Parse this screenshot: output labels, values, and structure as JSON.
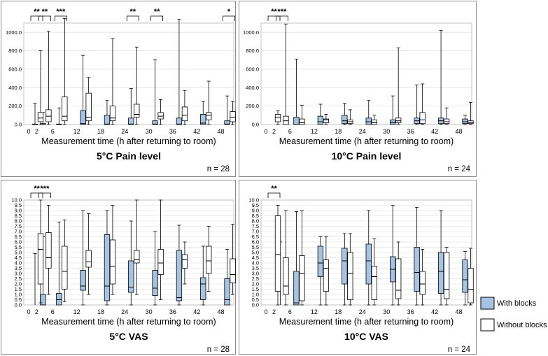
{
  "colors": {
    "with_blocks": "#a6c4e2",
    "without_blocks": "#ffffff",
    "stroke": "#000000"
  },
  "legend": {
    "with_blocks": "With blocks",
    "without_blocks": "Without blocks"
  },
  "chart_data": [
    {
      "type": "boxplot",
      "title": "5°C Pain level",
      "n_label": "n = 28",
      "xlabel": "Measurement time (h after returning to room)",
      "ylabel": "",
      "ylim": [
        0,
        1100
      ],
      "yticks": [
        "0.0",
        "200.0",
        "400.0",
        "600.0",
        "800.0",
        "1000.0"
      ],
      "ytick_values": [
        0,
        200,
        400,
        600,
        800,
        1000
      ],
      "categories": [
        "0",
        "2",
        "6",
        "12",
        "18",
        "24",
        "30",
        "36",
        "42",
        "48"
      ],
      "category_times": [
        0,
        2,
        6,
        12,
        18,
        24,
        30,
        36,
        42,
        48
      ],
      "significance": [
        {
          "time": 0,
          "label": "**"
        },
        {
          "time": 2,
          "label": "**"
        },
        {
          "time": 6,
          "label": "***"
        },
        {
          "time": 24,
          "label": "**"
        },
        {
          "time": 30,
          "label": "**"
        },
        {
          "time": 48,
          "label": "*"
        }
      ],
      "series": [
        {
          "name": "With blocks",
          "boxes": [
            {
              "min": 0,
              "q1": 0,
              "med": 0,
              "q3": 5,
              "max": 230
            },
            {
              "min": 0,
              "q1": 0,
              "med": 0,
              "q3": 10,
              "max": 130
            },
            {
              "min": 0,
              "q1": 0,
              "med": 0,
              "q3": 5,
              "max": 180
            },
            {
              "min": 0,
              "q1": 0,
              "med": 10,
              "q3": 150,
              "max": 750
            },
            {
              "min": 0,
              "q1": 0,
              "med": 5,
              "q3": 100,
              "max": 260
            },
            {
              "min": 0,
              "q1": 0,
              "med": 5,
              "q3": 70,
              "max": 390
            },
            {
              "min": 0,
              "q1": 0,
              "med": 5,
              "q3": 40,
              "max": 700
            },
            {
              "min": 0,
              "q1": 0,
              "med": 5,
              "q3": 70,
              "max": 1140
            },
            {
              "min": 0,
              "q1": 0,
              "med": 15,
              "q3": 110,
              "max": 250
            },
            {
              "min": 0,
              "q1": 0,
              "med": 5,
              "q3": 40,
              "max": 310
            }
          ]
        },
        {
          "name": "Without blocks",
          "boxes": [
            {
              "min": 0,
              "q1": 30,
              "med": 70,
              "q3": 130,
              "max": 800
            },
            {
              "min": 0,
              "q1": 30,
              "med": 90,
              "q3": 160,
              "max": 1010
            },
            {
              "min": 0,
              "q1": 40,
              "med": 90,
              "q3": 300,
              "max": 1150
            },
            {
              "min": 0,
              "q1": 40,
              "med": 80,
              "q3": 340,
              "max": 510
            },
            {
              "min": 0,
              "q1": 40,
              "med": 70,
              "q3": 200,
              "max": 930
            },
            {
              "min": 0,
              "q1": 80,
              "med": 110,
              "q3": 220,
              "max": 840
            },
            {
              "min": 0,
              "q1": 60,
              "med": 90,
              "q3": 130,
              "max": 270
            },
            {
              "min": 0,
              "q1": 40,
              "med": 100,
              "q3": 190,
              "max": 370
            },
            {
              "min": 0,
              "q1": 50,
              "med": 100,
              "q3": 130,
              "max": 470
            },
            {
              "min": 0,
              "q1": 30,
              "med": 80,
              "q3": 140,
              "max": 250
            }
          ]
        }
      ]
    },
    {
      "type": "boxplot",
      "title": "10°C Pain level",
      "n_label": "n = 24",
      "xlabel": "Measurement time (h after returning to room)",
      "ylabel": "",
      "ylim": [
        0,
        1100
      ],
      "yticks": [
        "0.0",
        "200.0",
        "400.0",
        "600.0",
        "800.0",
        "1000.0"
      ],
      "ytick_values": [
        0,
        200,
        400,
        600,
        800,
        1000
      ],
      "categories": [
        "0",
        "2",
        "6",
        "12",
        "18",
        "24",
        "30",
        "36",
        "42",
        "48"
      ],
      "category_times": [
        0,
        2,
        6,
        12,
        18,
        24,
        30,
        36,
        42,
        48
      ],
      "significance": [
        {
          "time": 0,
          "label": "**"
        },
        {
          "time": 2,
          "label": "***"
        }
      ],
      "series": [
        {
          "name": "With blocks",
          "boxes": [
            {
              "min": 0,
              "q1": 0,
              "med": 0,
              "q3": 0,
              "max": 0
            },
            {
              "min": 0,
              "q1": 0,
              "med": 0,
              "q3": 0,
              "max": 0
            },
            {
              "min": 0,
              "q1": 0,
              "med": 0,
              "q3": 80,
              "max": 710
            },
            {
              "min": 0,
              "q1": 0,
              "med": 30,
              "q3": 90,
              "max": 220
            },
            {
              "min": 0,
              "q1": 10,
              "med": 40,
              "q3": 100,
              "max": 230
            },
            {
              "min": 0,
              "q1": 0,
              "med": 30,
              "q3": 70,
              "max": 260
            },
            {
              "min": 0,
              "q1": 0,
              "med": 20,
              "q3": 50,
              "max": 310
            },
            {
              "min": 0,
              "q1": 10,
              "med": 40,
              "q3": 70,
              "max": 430
            },
            {
              "min": 0,
              "q1": 10,
              "med": 40,
              "q3": 70,
              "max": 1020
            },
            {
              "min": 0,
              "q1": 10,
              "med": 30,
              "q3": 60,
              "max": 100
            }
          ]
        },
        {
          "name": "Without blocks",
          "boxes": [
            {
              "min": 0,
              "q1": 30,
              "med": 80,
              "q3": 110,
              "max": 150
            },
            {
              "min": 0,
              "q1": 0,
              "med": 40,
              "q3": 90,
              "max": 1090
            },
            {
              "min": 0,
              "q1": 0,
              "med": 20,
              "q3": 60,
              "max": 210
            },
            {
              "min": 0,
              "q1": 20,
              "med": 50,
              "q3": 60,
              "max": 110
            },
            {
              "min": 0,
              "q1": 10,
              "med": 30,
              "q3": 50,
              "max": 160
            },
            {
              "min": 0,
              "q1": 0,
              "med": 20,
              "q3": 50,
              "max": 100
            },
            {
              "min": 0,
              "q1": 20,
              "med": 40,
              "q3": 70,
              "max": 830
            },
            {
              "min": 0,
              "q1": 10,
              "med": 50,
              "q3": 130,
              "max": 440
            },
            {
              "min": 0,
              "q1": 10,
              "med": 30,
              "q3": 60,
              "max": 180
            },
            {
              "min": 0,
              "q1": 10,
              "med": 20,
              "q3": 40,
              "max": 240
            }
          ]
        }
      ]
    },
    {
      "type": "boxplot",
      "title": "5°C VAS",
      "n_label": "n = 28",
      "xlabel": "Measurement time (h after returning to room)",
      "ylabel": "",
      "ylim": [
        0,
        10
      ],
      "yticks": [
        "0.0",
        "0.5",
        "1.0",
        "1.5",
        "2.0",
        "2.5",
        "3.0",
        "3.5",
        "4.0",
        "4.5",
        "5.0",
        "5.5",
        "6.0",
        "6.5",
        "7.0",
        "7.5",
        "8.0",
        "8.5",
        "9.0",
        "9.5",
        "10.0"
      ],
      "ytick_values": [
        0,
        0.5,
        1,
        1.5,
        2,
        2.5,
        3,
        3.5,
        4,
        4.5,
        5,
        5.5,
        6,
        6.5,
        7,
        7.5,
        8,
        8.5,
        9,
        9.5,
        10
      ],
      "categories": [
        "0",
        "2",
        "6",
        "12",
        "18",
        "24",
        "30",
        "36",
        "42",
        "48"
      ],
      "category_times": [
        0,
        2,
        6,
        12,
        18,
        24,
        30,
        36,
        42,
        48
      ],
      "significance": [
        {
          "time": 0,
          "label": "**"
        },
        {
          "time": 2,
          "label": "***"
        }
      ],
      "series": [
        {
          "name": "With blocks",
          "boxes": [
            {
              "min": 0,
              "q1": 0,
              "med": 0,
              "q3": 0,
              "max": 4.9
            },
            {
              "min": 0,
              "q1": 0,
              "med": 0,
              "q3": 1.0,
              "max": 6.5
            },
            {
              "min": 0,
              "q1": 0,
              "med": 0.5,
              "q3": 1.1,
              "max": 7.9
            },
            {
              "min": 0,
              "q1": 1.4,
              "med": 1.8,
              "q3": 3.3,
              "max": 9.0
            },
            {
              "min": 0,
              "q1": 0.4,
              "med": 1.8,
              "q3": 6.7,
              "max": 9.0
            },
            {
              "min": 0,
              "q1": 1.2,
              "med": 1.7,
              "q3": 4.2,
              "max": 8.0
            },
            {
              "min": 0,
              "q1": 0.9,
              "med": 1.6,
              "q3": 3.3,
              "max": 7.0
            },
            {
              "min": 0,
              "q1": 0.4,
              "med": 0.7,
              "q3": 5.2,
              "max": 7.6
            },
            {
              "min": 0,
              "q1": 0.5,
              "med": 2.0,
              "q3": 2.6,
              "max": 5.6
            },
            {
              "min": 0,
              "q1": 0,
              "med": 0.5,
              "q3": 2.5,
              "max": 5.3
            }
          ]
        },
        {
          "name": "Without blocks",
          "boxes": [
            {
              "min": 0.2,
              "q1": 2.0,
              "med": 5.3,
              "q3": 6.8,
              "max": 10.0
            },
            {
              "min": 1.0,
              "q1": 3.5,
              "med": 4.5,
              "q3": 6.9,
              "max": 9.5
            },
            {
              "min": 0.3,
              "q1": 1.5,
              "med": 3.2,
              "q3": 5.6,
              "max": 8.1
            },
            {
              "min": 1.0,
              "q1": 3.6,
              "med": 4.1,
              "q3": 5.2,
              "max": 8.7
            },
            {
              "min": 1.0,
              "q1": 2.0,
              "med": 3.7,
              "q3": 6.2,
              "max": 9.5
            },
            {
              "min": 1.0,
              "q1": 4.0,
              "med": 4.3,
              "q3": 5.2,
              "max": 10.0
            },
            {
              "min": 0.5,
              "q1": 2.9,
              "med": 4.0,
              "q3": 5.3,
              "max": 10.0
            },
            {
              "min": 2.0,
              "q1": 3.5,
              "med": 4.3,
              "q3": 4.8,
              "max": 6.0
            },
            {
              "min": 1.3,
              "q1": 3.0,
              "med": 4.2,
              "q3": 5.6,
              "max": 7.5
            },
            {
              "min": 1.0,
              "q1": 2.1,
              "med": 2.9,
              "q3": 4.4,
              "max": 7.7
            }
          ]
        }
      ]
    },
    {
      "type": "boxplot",
      "title": "10°C VAS",
      "n_label": "n = 24",
      "xlabel": "Measurement time (h after returning to room)",
      "ylabel": "",
      "ylim": [
        0,
        10
      ],
      "yticks": [
        "0.0",
        "0.5",
        "1.0",
        "1.5",
        "2.0",
        "2.5",
        "3.0",
        "3.5",
        "4.0",
        "4.5",
        "5.0",
        "5.5",
        "6.0",
        "6.5",
        "7.0",
        "7.5",
        "8.0",
        "8.5",
        "9.0",
        "9.5",
        "10.0"
      ],
      "ytick_values": [
        0,
        0.5,
        1,
        1.5,
        2,
        2.5,
        3,
        3.5,
        4,
        4.5,
        5,
        5.5,
        6,
        6.5,
        7,
        7.5,
        8,
        8.5,
        9,
        9.5,
        10
      ],
      "categories": [
        "0",
        "2",
        "6",
        "12",
        "18",
        "24",
        "30",
        "36",
        "42",
        "48"
      ],
      "category_times": [
        0,
        2,
        6,
        12,
        18,
        24,
        30,
        36,
        42,
        48
      ],
      "significance": [
        {
          "time": 0,
          "label": "**"
        }
      ],
      "series": [
        {
          "name": "With blocks",
          "boxes": [
            {
              "min": 0,
              "q1": 0,
              "med": 0,
              "q3": 0,
              "max": 0
            },
            {
              "min": 0,
              "q1": 0,
              "med": 0,
              "q3": 0,
              "max": 6.0
            },
            {
              "min": 0,
              "q1": 0,
              "med": 0.2,
              "q3": 3.2,
              "max": 8.9
            },
            {
              "min": 0,
              "q1": 2.7,
              "med": 4.0,
              "q3": 5.6,
              "max": 6.5
            },
            {
              "min": 0,
              "q1": 2.0,
              "med": 4.2,
              "q3": 5.4,
              "max": 6.8
            },
            {
              "min": 0,
              "q1": 2.0,
              "med": 4.2,
              "q3": 5.8,
              "max": 9.0
            },
            {
              "min": 0,
              "q1": 2.2,
              "med": 3.4,
              "q3": 4.6,
              "max": 9.5
            },
            {
              "min": 0,
              "q1": 1.3,
              "med": 3.1,
              "q3": 5.5,
              "max": 9.3
            },
            {
              "min": 0,
              "q1": 1.1,
              "med": 3.2,
              "q3": 5.0,
              "max": 9.0
            },
            {
              "min": 0,
              "q1": 1.2,
              "med": 2.4,
              "q3": 4.3,
              "max": 5.1
            }
          ]
        },
        {
          "name": "Without blocks",
          "boxes": [
            {
              "min": 0,
              "q1": 1.3,
              "med": 4.8,
              "q3": 8.5,
              "max": 9.5
            },
            {
              "min": 0,
              "q1": 1.0,
              "med": 1.8,
              "q3": 4.5,
              "max": 9.0
            },
            {
              "min": 0,
              "q1": 0.4,
              "med": 3.0,
              "q3": 4.7,
              "max": 9.0
            },
            {
              "min": 0,
              "q1": 1.3,
              "med": 3.5,
              "q3": 4.3,
              "max": 6.5
            },
            {
              "min": 0,
              "q1": 0.5,
              "med": 3.0,
              "q3": 5.0,
              "max": 6.8
            },
            {
              "min": 0,
              "q1": 0.5,
              "med": 2.7,
              "q3": 3.7,
              "max": 6.3
            },
            {
              "min": 0,
              "q1": 0.6,
              "med": 1.4,
              "q3": 4.4,
              "max": 6.0
            },
            {
              "min": 0,
              "q1": 1.0,
              "med": 2.0,
              "q3": 3.2,
              "max": 5.3
            },
            {
              "min": 0,
              "q1": 0.6,
              "med": 1.5,
              "q3": 5.0,
              "max": 5.5
            },
            {
              "min": 0,
              "q1": 0.2,
              "med": 1.5,
              "q3": 3.5,
              "max": 5.4
            }
          ]
        }
      ]
    }
  ]
}
